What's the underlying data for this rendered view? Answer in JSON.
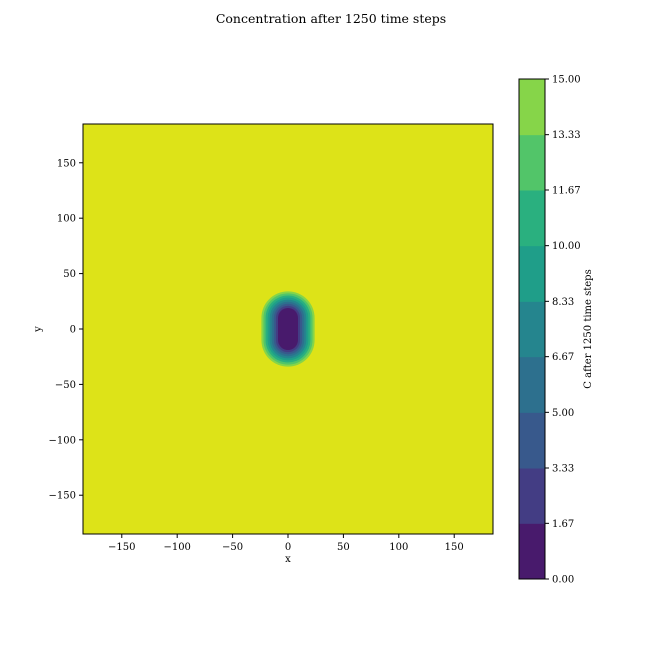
{
  "chart_data": {
    "type": "contour",
    "title": "Concentration after 1250 time steps",
    "xlabel": "x",
    "ylabel": "y",
    "xlim": [
      -185,
      185
    ],
    "ylim": [
      -185,
      185
    ],
    "x_ticks": [
      -150,
      -100,
      -50,
      0,
      50,
      100,
      150
    ],
    "x_tick_labels": [
      "−150",
      "−100",
      "−50",
      "0",
      "50",
      "100",
      "150"
    ],
    "y_ticks": [
      150,
      100,
      50,
      0,
      -50,
      -100,
      -150
    ],
    "y_tick_labels": [
      "150",
      "100",
      "50",
      "0",
      "−50",
      "−100",
      "−150"
    ],
    "background_level_color": "#dde318",
    "feature": {
      "description_center": [
        0,
        0
      ],
      "center_x": 0,
      "center_y": 0,
      "outer_half_width": 24,
      "outer_half_height": 34,
      "inner_half_width": 9,
      "inner_half_height": 19,
      "levels": 9
    },
    "colorbar": {
      "label": "C after 1250 time steps",
      "range": [
        0,
        15
      ],
      "tick_values": [
        0,
        1.67,
        3.33,
        5,
        6.67,
        8.33,
        10,
        11.67,
        13.33,
        15
      ],
      "tick_labels": [
        "0.00",
        "1.67",
        "3.33",
        "5.00",
        "6.67",
        "8.33",
        "10.00",
        "11.67",
        "13.33",
        "15.00"
      ],
      "colors": [
        "#481a6c",
        "#433d84",
        "#38598c",
        "#2d708e",
        "#25858e",
        "#1f9e89",
        "#2ab07f",
        "#52c569",
        "#86d549",
        "#dde318"
      ]
    }
  }
}
